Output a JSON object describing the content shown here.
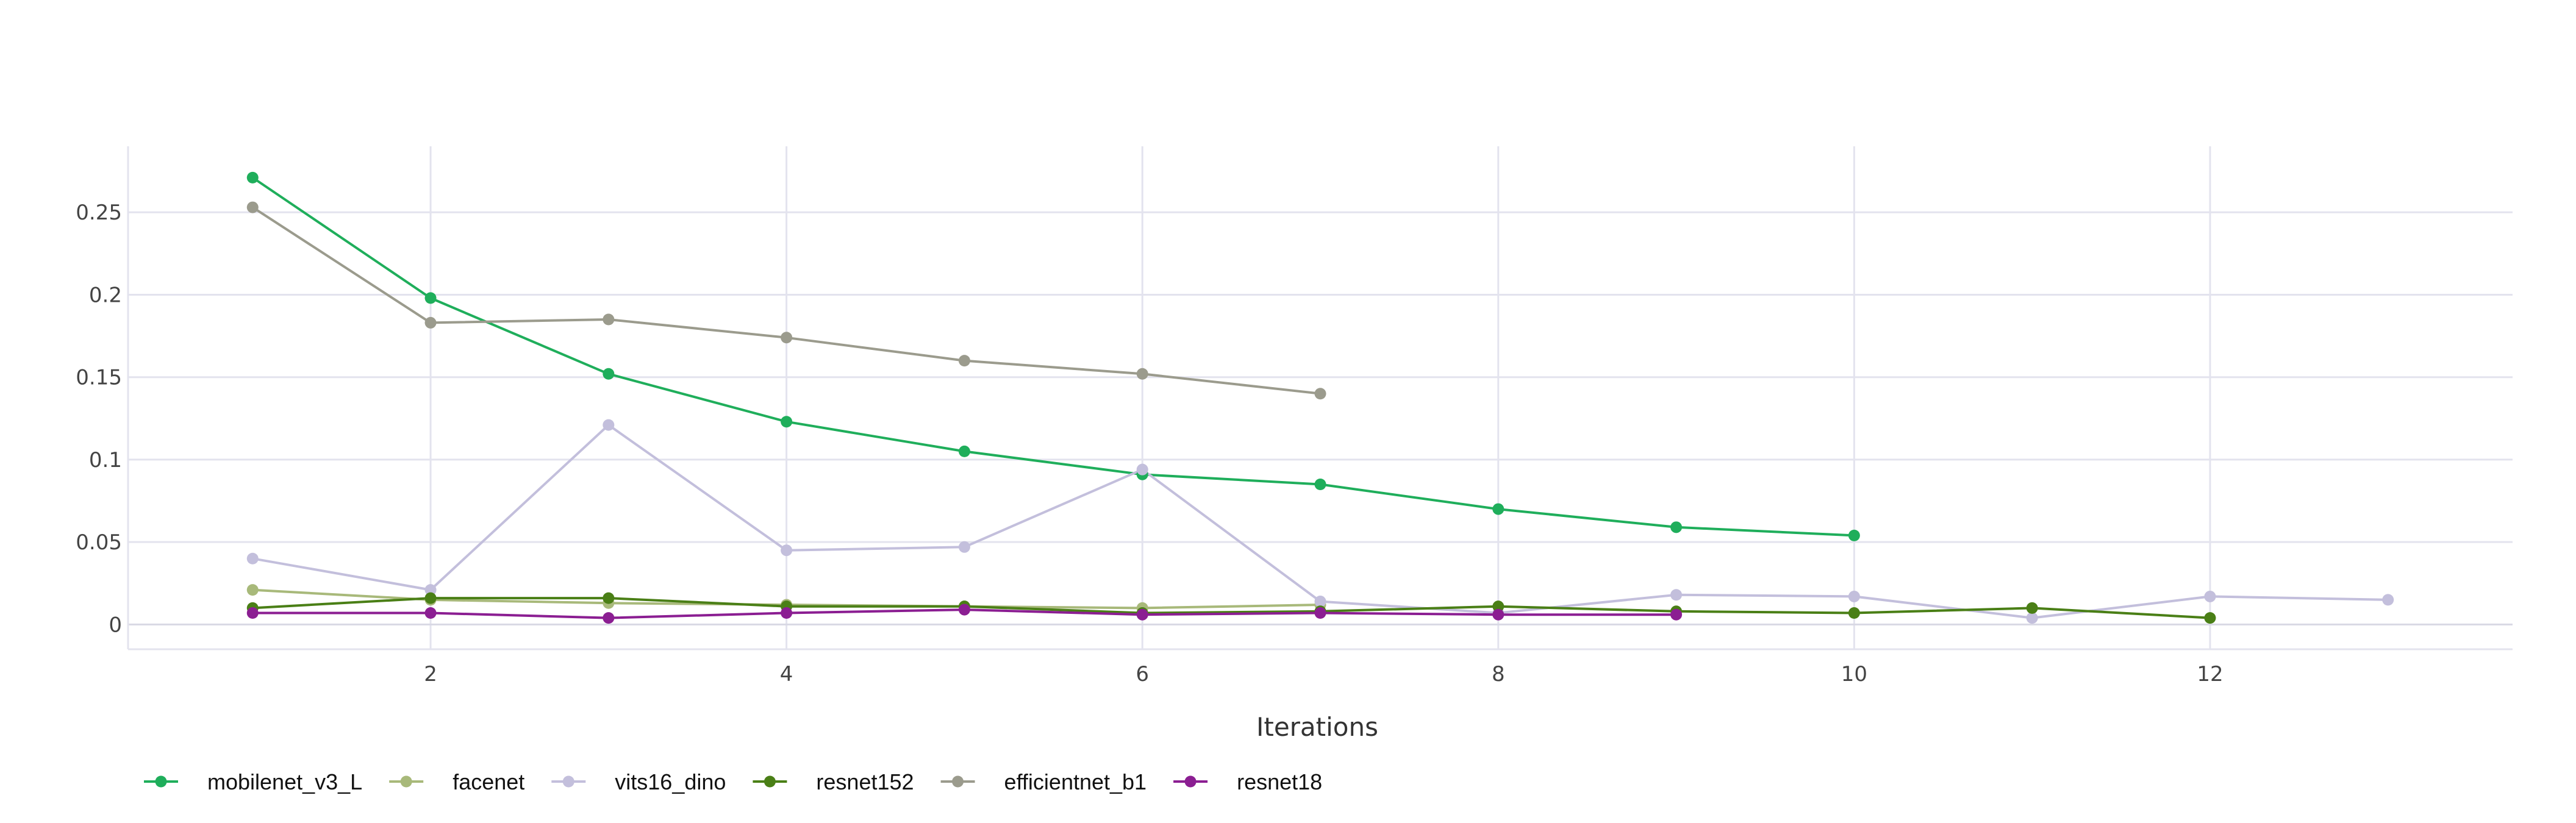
{
  "chart_data": {
    "type": "line",
    "xlabel": "Iterations",
    "ylabel": "",
    "xlim": [
      0.3,
      13.7
    ],
    "ylim": [
      -0.015,
      0.29
    ],
    "xticks": [
      2,
      4,
      6,
      8,
      10,
      12
    ],
    "yticks": [
      0,
      0.05,
      0.1,
      0.15,
      0.2,
      0.25
    ],
    "xtick_labels": [
      "2",
      "4",
      "6",
      "8",
      "10",
      "12"
    ],
    "ytick_labels": [
      "0",
      "0.05",
      "0.1",
      "0.15",
      "0.2",
      "0.25"
    ],
    "grid": true,
    "legend_position": "bottom-left",
    "series": [
      {
        "name": "mobilenet_v3_L",
        "color": "#1fae5b",
        "x": [
          1,
          2,
          3,
          4,
          5,
          6,
          7,
          8,
          9,
          10
        ],
        "values": [
          0.271,
          0.198,
          0.152,
          0.123,
          0.105,
          0.091,
          0.085,
          0.07,
          0.059,
          0.054
        ]
      },
      {
        "name": "facenet",
        "color": "#a8b97a",
        "x": [
          1,
          2,
          3,
          4,
          5,
          6,
          7
        ],
        "values": [
          0.021,
          0.015,
          0.013,
          0.012,
          0.011,
          0.01,
          0.012
        ]
      },
      {
        "name": "vits16_dino",
        "color": "#c3bfdc",
        "x": [
          1,
          2,
          3,
          4,
          5,
          6,
          7,
          8,
          9,
          10,
          11,
          12,
          13
        ],
        "values": [
          0.04,
          0.021,
          0.121,
          0.045,
          0.047,
          0.094,
          0.014,
          0.007,
          0.018,
          0.017,
          0.004,
          0.017,
          0.015
        ]
      },
      {
        "name": "resnet152",
        "color": "#4a7f16",
        "x": [
          1,
          2,
          3,
          4,
          5,
          6,
          7,
          8,
          9,
          10,
          11,
          12
        ],
        "values": [
          0.01,
          0.016,
          0.016,
          0.011,
          0.011,
          0.007,
          0.008,
          0.011,
          0.008,
          0.007,
          0.01,
          0.004
        ]
      },
      {
        "name": "efficientnet_b1",
        "color": "#9b9b8d",
        "x": [
          1,
          2,
          3,
          4,
          5,
          6,
          7
        ],
        "values": [
          0.253,
          0.183,
          0.185,
          0.174,
          0.16,
          0.152,
          0.14
        ]
      },
      {
        "name": "resnet18",
        "color": "#8b1e92",
        "x": [
          1,
          2,
          3,
          4,
          5,
          6,
          7,
          8,
          9
        ],
        "values": [
          0.007,
          0.007,
          0.004,
          0.007,
          0.009,
          0.006,
          0.007,
          0.006,
          0.006
        ]
      }
    ]
  }
}
